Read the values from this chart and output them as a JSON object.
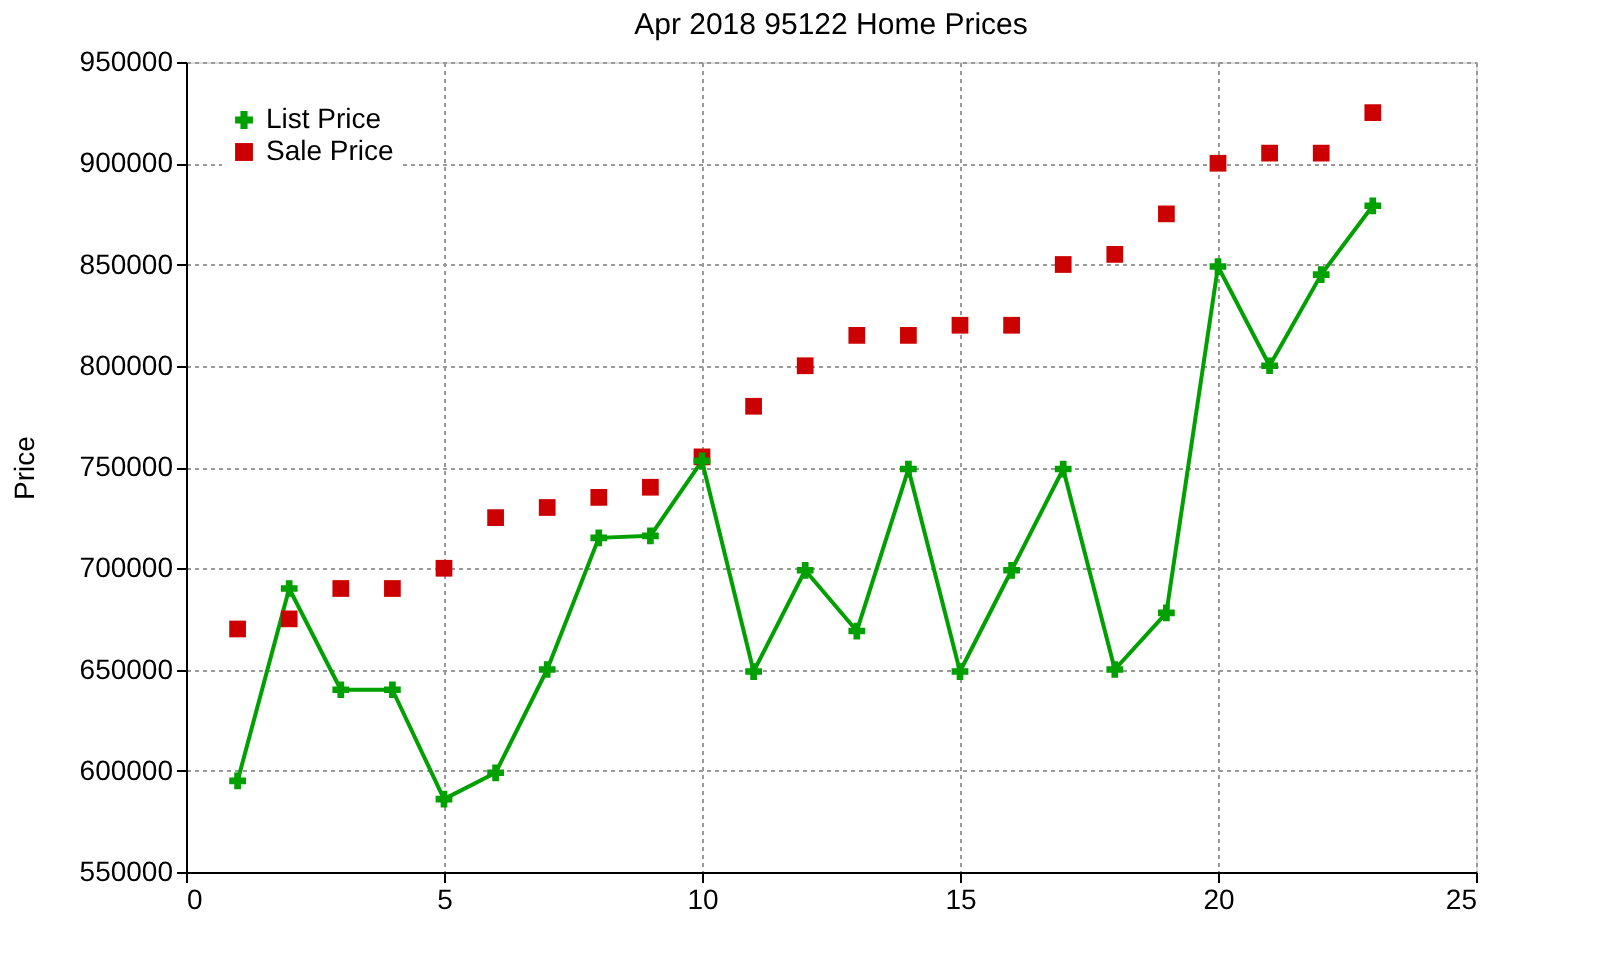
{
  "chart_data": {
    "type": "line",
    "title": "Apr 2018 95122 Home Prices",
    "ylabel": "Price",
    "x": [
      1,
      2,
      3,
      4,
      5,
      6,
      7,
      8,
      9,
      10,
      11,
      12,
      13,
      14,
      15,
      16,
      17,
      18,
      19,
      20,
      21,
      22,
      23
    ],
    "series": [
      {
        "name": "List Price",
        "marker": "cross",
        "color": "#00a000",
        "values": [
          595000,
          690000,
          640000,
          640000,
          586000,
          599000,
          650000,
          715000,
          716000,
          753000,
          649000,
          699000,
          669000,
          749000,
          649000,
          699000,
          749000,
          650000,
          678000,
          849000,
          800000,
          845000,
          879000
        ]
      },
      {
        "name": "Sale Price",
        "type": "scatter",
        "marker": "square",
        "color": "#cc0000",
        "values": [
          670000,
          675000,
          690000,
          690000,
          700000,
          725000,
          730000,
          735000,
          740000,
          755000,
          780000,
          800000,
          815000,
          815000,
          820000,
          820000,
          850000,
          855000,
          875000,
          900000,
          905000,
          905000,
          925000
        ]
      }
    ],
    "xlim": [
      0,
      25
    ],
    "xticks": [
      0,
      5,
      10,
      15,
      20,
      25
    ],
    "ylim": [
      550000,
      950000
    ],
    "yticks": [
      550000,
      600000,
      650000,
      700000,
      750000,
      800000,
      850000,
      900000,
      950000
    ],
    "grid": true,
    "legend": "top left"
  }
}
